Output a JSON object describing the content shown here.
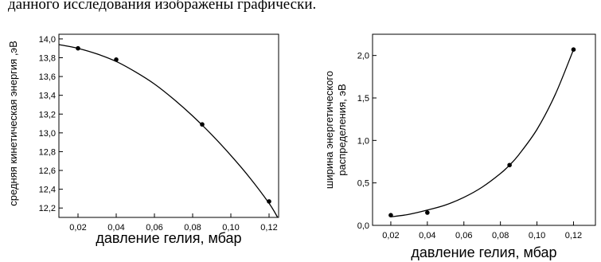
{
  "header_text": "данного исследования изображены графически.",
  "chart_data": [
    {
      "type": "scatter",
      "title": "",
      "xlabel": "давление гелия, мбар",
      "ylabel": "средняя кинетическая энергия ,эВ",
      "xlim": [
        0.01,
        0.125
      ],
      "ylim": [
        12.1,
        14.05
      ],
      "x_ticks": [
        0.02,
        0.04,
        0.06,
        0.08,
        0.1,
        0.12
      ],
      "x_tick_labels": [
        "0,02",
        "0,04",
        "0,06",
        "0,08",
        "0,10",
        "0,12"
      ],
      "y_ticks": [
        12.2,
        12.4,
        12.6,
        12.8,
        13.0,
        13.2,
        13.4,
        13.6,
        13.8,
        14.0
      ],
      "y_tick_labels": [
        "12,2",
        "12,4",
        "12,6",
        "12,8",
        "13,0",
        "13,2",
        "13,4",
        "13,6",
        "13,8",
        "14,0"
      ],
      "points": [
        {
          "x": 0.02,
          "y": 13.9
        },
        {
          "x": 0.04,
          "y": 13.78
        },
        {
          "x": 0.085,
          "y": 13.09
        },
        {
          "x": 0.12,
          "y": 12.27
        }
      ],
      "fit_curve": {
        "kind": "quadratic",
        "x": [
          0.01,
          0.02,
          0.03,
          0.04,
          0.05,
          0.06,
          0.07,
          0.08,
          0.09,
          0.1,
          0.11,
          0.12,
          0.1245
        ],
        "y": [
          13.94,
          13.9,
          13.84,
          13.76,
          13.65,
          13.52,
          13.36,
          13.18,
          12.98,
          12.76,
          12.52,
          12.25,
          12.1
        ]
      },
      "grid": false,
      "legend": "none"
    },
    {
      "type": "scatter",
      "title": "",
      "xlabel": "давление гелия, мбар",
      "ylabel": "ширина энергетического распределения, эВ",
      "ylabel_lines": [
        "ширина энергетического",
        "распределения, эВ"
      ],
      "xlim": [
        0.01,
        0.132
      ],
      "ylim": [
        0.0,
        2.25
      ],
      "x_ticks": [
        0.02,
        0.04,
        0.06,
        0.08,
        0.1,
        0.12
      ],
      "x_tick_labels": [
        "0,02",
        "0,04",
        "0,06",
        "0,08",
        "0,10",
        "0,12"
      ],
      "y_ticks": [
        0.0,
        0.5,
        1.0,
        1.5,
        2.0
      ],
      "y_tick_labels": [
        "0,0",
        "0,5",
        "1,0",
        "1,5",
        "2,0"
      ],
      "points": [
        {
          "x": 0.02,
          "y": 0.12
        },
        {
          "x": 0.04,
          "y": 0.15
        },
        {
          "x": 0.085,
          "y": 0.71
        },
        {
          "x": 0.12,
          "y": 2.07
        }
      ],
      "fit_curve": {
        "kind": "exponential",
        "x": [
          0.02,
          0.03,
          0.04,
          0.05,
          0.06,
          0.07,
          0.08,
          0.085,
          0.09,
          0.1,
          0.11,
          0.12
        ],
        "y": [
          0.1,
          0.13,
          0.18,
          0.24,
          0.33,
          0.45,
          0.61,
          0.71,
          0.83,
          1.13,
          1.54,
          2.07
        ]
      },
      "grid": false,
      "legend": "none"
    }
  ]
}
